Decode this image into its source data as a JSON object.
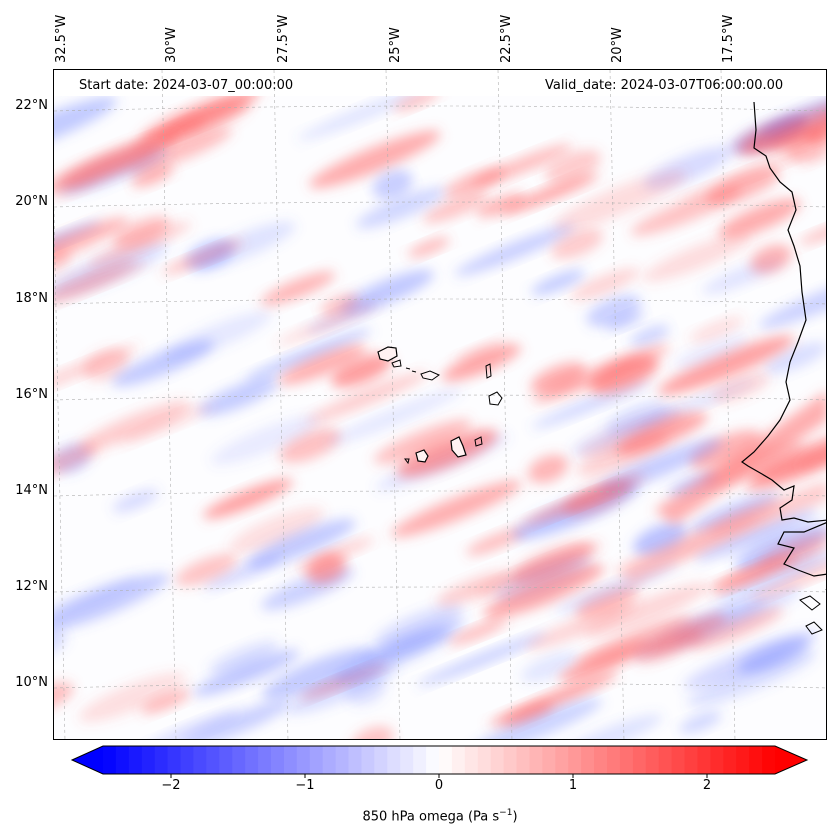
{
  "header": {
    "start_date": "Start date: 2024-03-07_00:00:00",
    "valid_date": "Valid_date: 2024-03-07T06:00:00.00"
  },
  "longitude_labels": [
    "32.5°W",
    "30°W",
    "27.5°W",
    "25°W",
    "22.5°W",
    "20°W",
    "17.5°W"
  ],
  "latitude_labels": [
    "22°N",
    "20°N",
    "18°N",
    "16°N",
    "14°N",
    "12°N",
    "10°N"
  ],
  "colorbar": {
    "ticks": [
      "−2",
      "−1",
      "0",
      "1",
      "2"
    ],
    "min": -2.6,
    "max": 2.6,
    "label_main": "850 hPa omega (Pa s",
    "label_sup": "−1",
    "label_end": ")",
    "colors": {
      "negative": "#0000ff",
      "neutral": "#ffffff",
      "positive": "#ff0000"
    }
  },
  "map": {
    "field": "850 hPa omega",
    "coastline_color": "#000000",
    "gridline_color": "#b0b0b0"
  }
}
